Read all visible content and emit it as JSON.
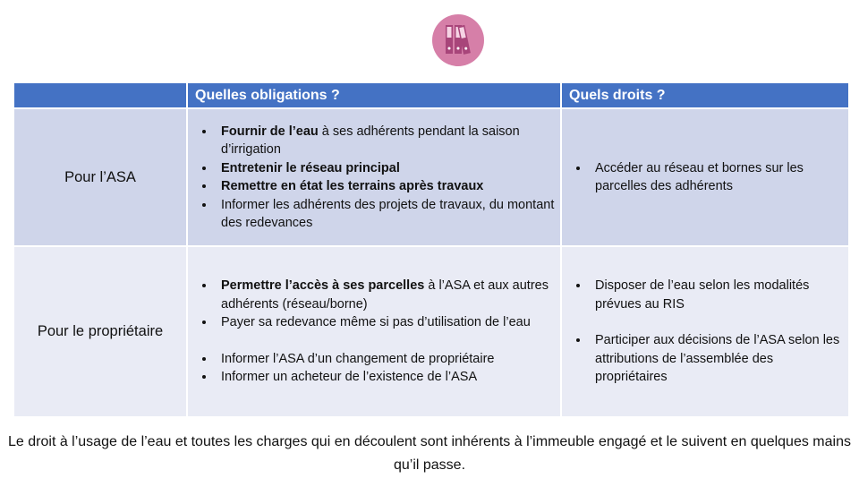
{
  "icon": "binders-icon",
  "colors": {
    "header": "#4472C4",
    "row1": "#CFD5EA",
    "row2": "#E9EBF5",
    "icon": "#D67FA8"
  },
  "table": {
    "headers": [
      "",
      "Quelles obligations ?",
      "Quels droits ?"
    ],
    "rows": [
      {
        "label": "Pour l’ASA",
        "obligations": [
          {
            "bold": "Fournir de l’eau",
            "text": " à ses adhérents pendant la saison d’irrigation"
          },
          {
            "bold": "Entretenir le réseau principal",
            "text": ""
          },
          {
            "bold": "Remettre en état les terrains après travaux",
            "text": ""
          },
          {
            "bold": "",
            "text": "Informer les adhérents des projets de travaux,  du montant des redevances"
          }
        ],
        "droits": [
          "Accéder au réseau et bornes sur les parcelles des adhérents"
        ]
      },
      {
        "label": "Pour le propriétaire",
        "obligations": [
          {
            "bold": "Permettre l’accès à ses parcelles",
            "text": " à l’ASA et aux autres adhérents (réseau/borne)"
          },
          {
            "bold": "",
            "text": "Payer sa redevance même si pas d’utilisation de l’eau"
          },
          {
            "bold": "",
            "text": "Informer l’ASA d’un changement de propriétaire"
          },
          {
            "bold": "",
            "text": "Informer un acheteur de l’existence de l’ASA"
          }
        ],
        "droits": [
          "Disposer de l’eau selon les modalités prévues au RIS",
          "Participer aux décisions de l’ASA selon les attributions de l’assemblée des propriétaires"
        ]
      }
    ]
  },
  "footer": "Le droit à l’usage de l’eau et toutes les charges qui en découlent sont inhérents à l’immeuble engagé et le suivent en quelques mains qu’il passe."
}
